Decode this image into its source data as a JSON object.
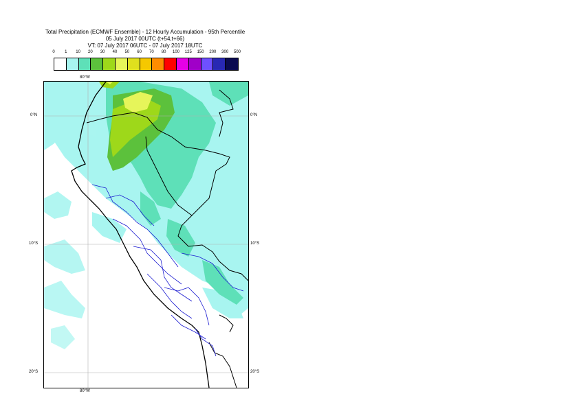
{
  "title": {
    "line1": "Total Precipitation (ECMWF Ensemble) - 12 Hourly Accumulation - 95th Percentile",
    "line2": "05 July 2017 00UTC (t+54,t+66)",
    "line3": "VT: 07 July 2017 06UTC - 07 July 2017 18UTC"
  },
  "legend": {
    "ticks": [
      "0",
      "1",
      "10",
      "20",
      "30",
      "40",
      "50",
      "60",
      "70",
      "80",
      "100",
      "125",
      "150",
      "200",
      "300",
      "500"
    ],
    "colors": [
      "#ffffff",
      "#a8f5f0",
      "#5ee0b8",
      "#5cc13c",
      "#9ed81a",
      "#e6f55a",
      "#dfe01e",
      "#f5c800",
      "#ff8c00",
      "#ff0000",
      "#e600e6",
      "#a000c8",
      "#6e50ff",
      "#2828b4",
      "#0a0a50"
    ]
  },
  "axes": {
    "lon_top": "80°W",
    "lon_bottom": "80°W",
    "lat_0_left": "0°N",
    "lat_0_right": "0°N",
    "lat_10_left": "10°S",
    "lat_10_right": "10°S",
    "lat_20_left": "20°S",
    "lat_20_right": "20°S"
  },
  "map": {
    "region": "Peru",
    "projection": "cylindrical",
    "lon_range": [
      -83,
      -67
    ],
    "lat_range": [
      4,
      -21
    ],
    "gridlines": {
      "longitudes": [
        -80
      ],
      "latitudes": [
        0,
        -10,
        -20
      ]
    }
  }
}
